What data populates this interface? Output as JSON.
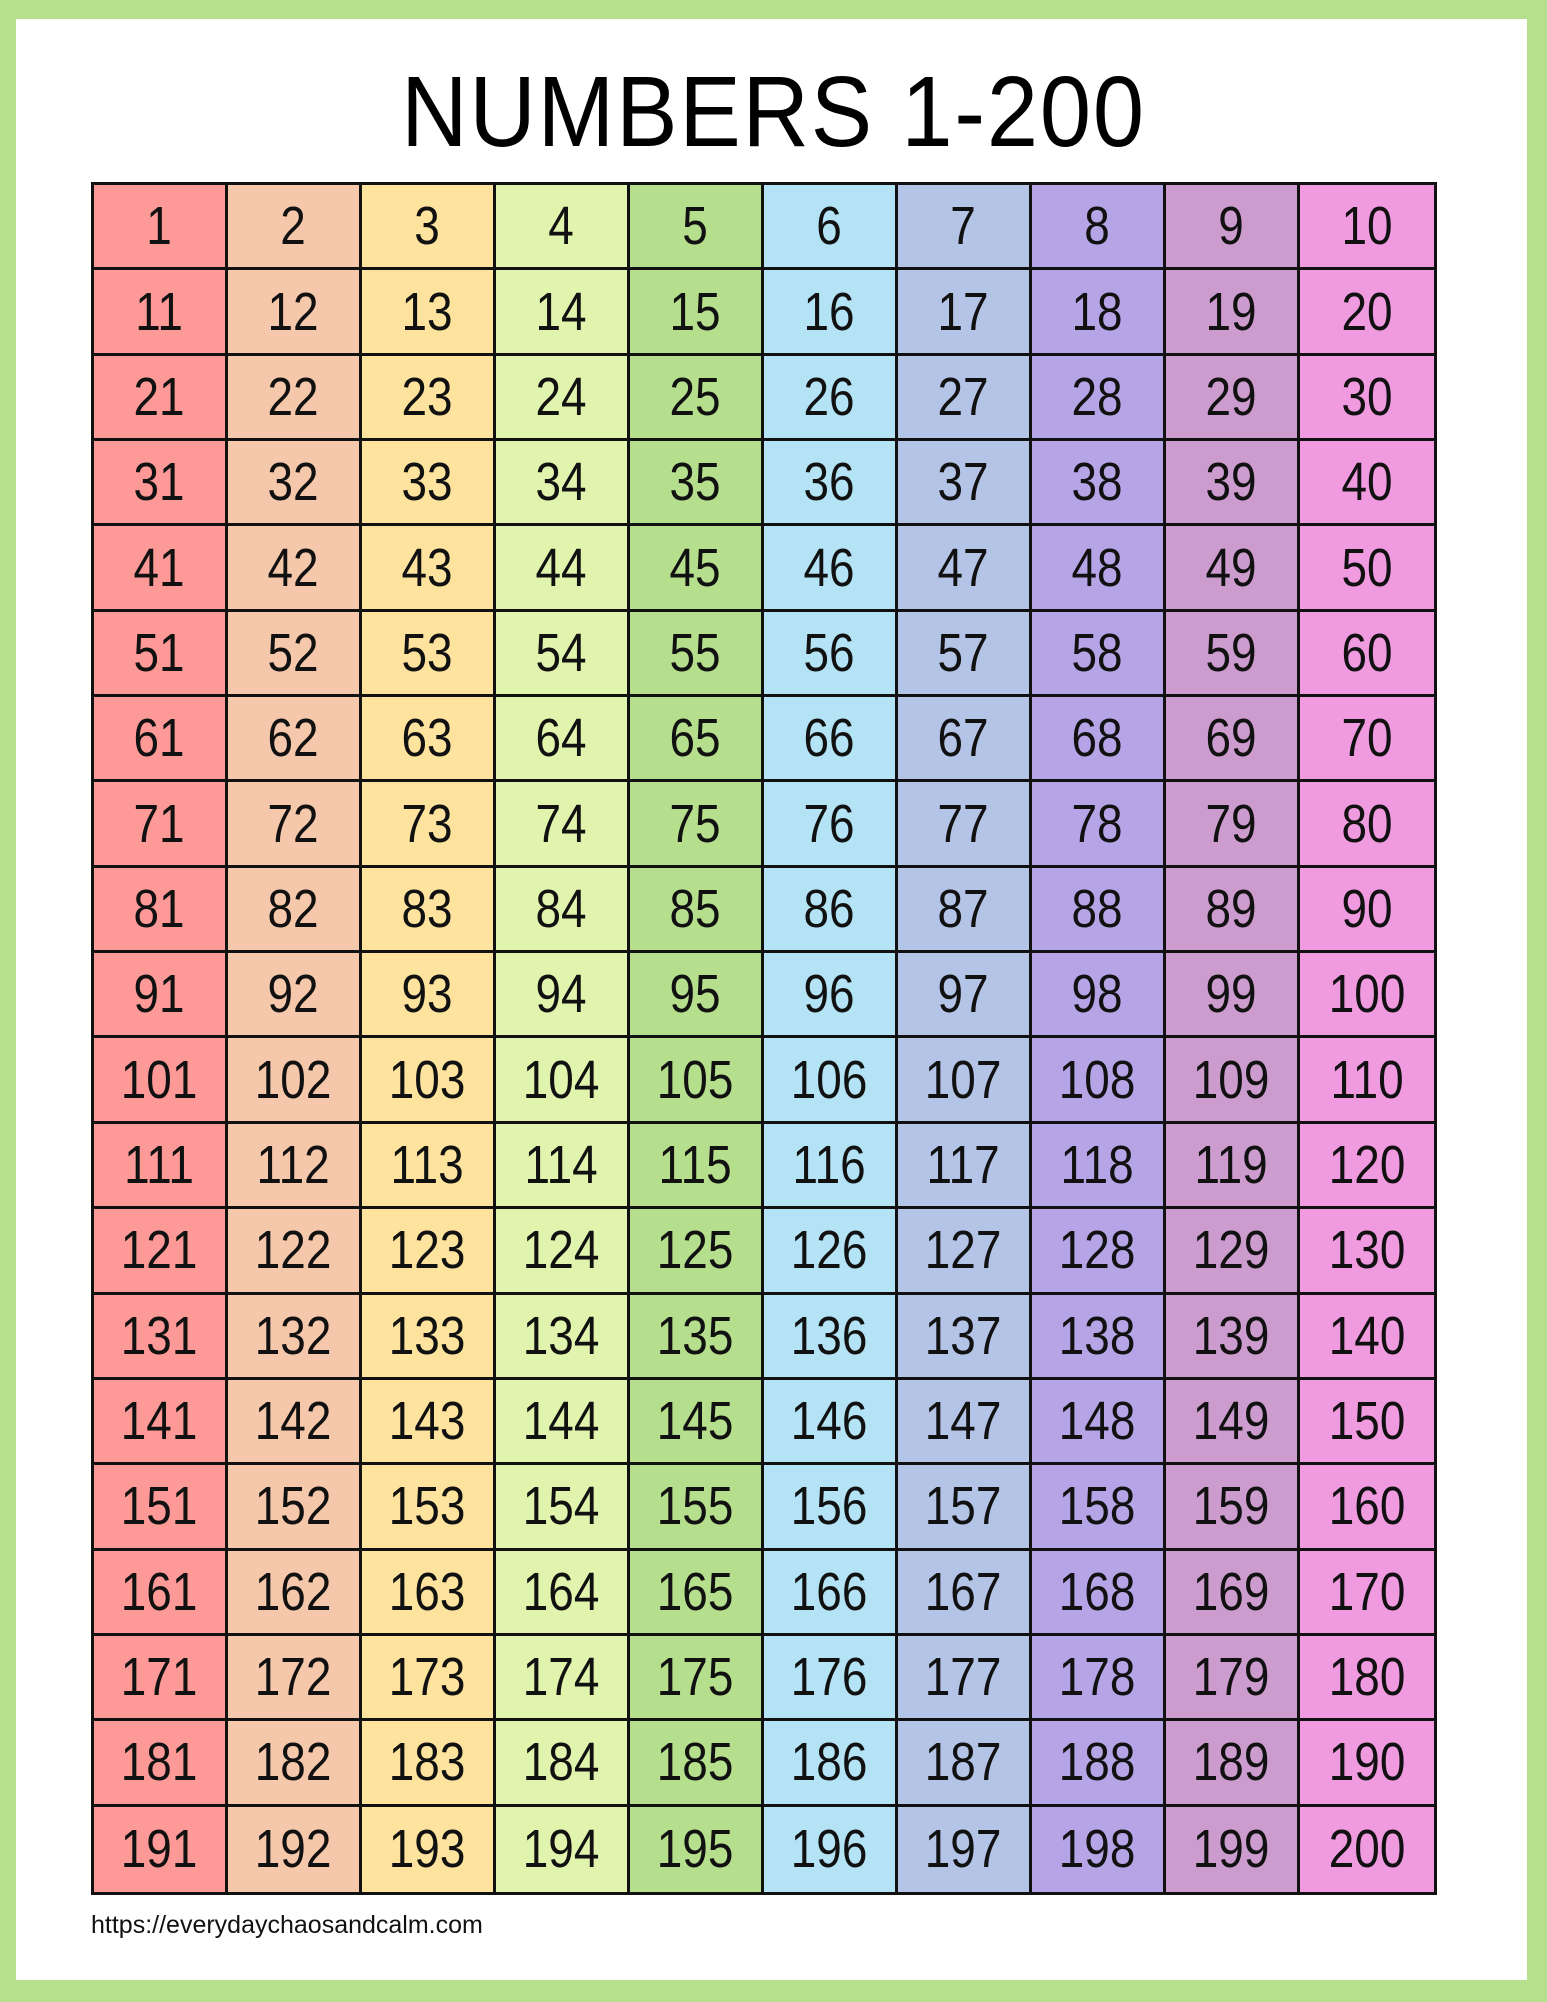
{
  "title": "NUMBERS 1-200",
  "footer_url": "https://everydaychaosandcalm.com",
  "colors": {
    "frame": "#b7e08c",
    "columns": [
      "#fd9a98",
      "#f6c8ab",
      "#fde39d",
      "#e0f4ae",
      "#b6df8d",
      "#b3e3f5",
      "#b3c4e6",
      "#b5a5e6",
      "#cc9cce",
      "#f09ae0"
    ]
  },
  "grid": {
    "rows": [
      [
        1,
        2,
        3,
        4,
        5,
        6,
        7,
        8,
        9,
        10
      ],
      [
        11,
        12,
        13,
        14,
        15,
        16,
        17,
        18,
        19,
        20
      ],
      [
        21,
        22,
        23,
        24,
        25,
        26,
        27,
        28,
        29,
        30
      ],
      [
        31,
        32,
        33,
        34,
        35,
        36,
        37,
        38,
        39,
        40
      ],
      [
        41,
        42,
        43,
        44,
        45,
        46,
        47,
        48,
        49,
        50
      ],
      [
        51,
        52,
        53,
        54,
        55,
        56,
        57,
        58,
        59,
        60
      ],
      [
        61,
        62,
        63,
        64,
        65,
        66,
        67,
        68,
        69,
        70
      ],
      [
        71,
        72,
        73,
        74,
        75,
        76,
        77,
        78,
        79,
        80
      ],
      [
        81,
        82,
        83,
        84,
        85,
        86,
        87,
        88,
        89,
        90
      ],
      [
        91,
        92,
        93,
        94,
        95,
        96,
        97,
        98,
        99,
        100
      ],
      [
        101,
        102,
        103,
        104,
        105,
        106,
        107,
        108,
        109,
        110
      ],
      [
        111,
        112,
        113,
        114,
        115,
        116,
        117,
        118,
        119,
        120
      ],
      [
        121,
        122,
        123,
        124,
        125,
        126,
        127,
        128,
        129,
        130
      ],
      [
        131,
        132,
        133,
        134,
        135,
        136,
        137,
        138,
        139,
        140
      ],
      [
        141,
        142,
        143,
        144,
        145,
        146,
        147,
        148,
        149,
        150
      ],
      [
        151,
        152,
        153,
        154,
        155,
        156,
        157,
        158,
        159,
        160
      ],
      [
        161,
        162,
        163,
        164,
        165,
        166,
        167,
        168,
        169,
        170
      ],
      [
        171,
        172,
        173,
        174,
        175,
        176,
        177,
        178,
        179,
        180
      ],
      [
        181,
        182,
        183,
        184,
        185,
        186,
        187,
        188,
        189,
        190
      ],
      [
        191,
        192,
        193,
        194,
        195,
        196,
        197,
        198,
        199,
        200
      ]
    ]
  }
}
